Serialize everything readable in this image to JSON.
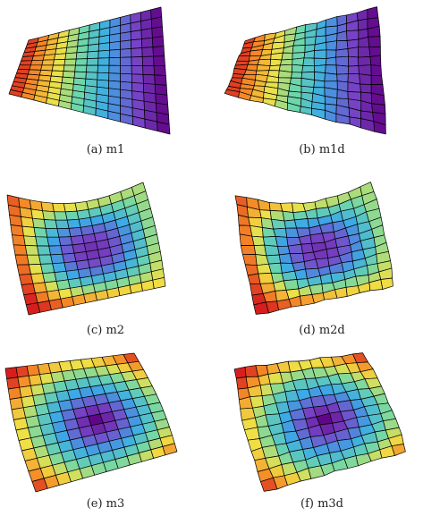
{
  "panels": [
    {
      "caption": "(a) m1",
      "surface": "m1",
      "colormap": "jet",
      "mesh_color": "#000000"
    },
    {
      "caption": "(b) m1d",
      "surface": "m1d",
      "colormap": "jet",
      "mesh_color": "#000000"
    },
    {
      "caption": "(c) m2",
      "surface": "m2",
      "colormap": "jet",
      "mesh_color": "#000000"
    },
    {
      "caption": "(d) m2d",
      "surface": "m2d",
      "colormap": "jet",
      "mesh_color": "#000000"
    },
    {
      "caption": "(e) m3",
      "surface": "m3",
      "colormap": "jet",
      "mesh_color": "#000000"
    },
    {
      "caption": "(f) m3d",
      "surface": "m3d",
      "colormap": "jet",
      "mesh_color": "#000000"
    }
  ]
}
